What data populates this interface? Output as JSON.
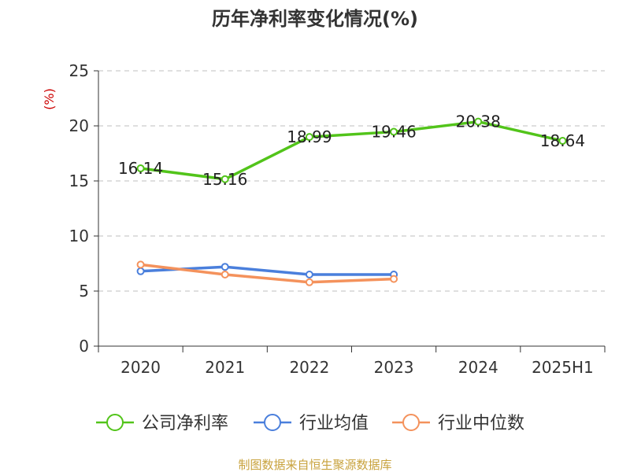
{
  "chart_data": {
    "type": "line",
    "title": "历年净利率变化情况(%)",
    "ylabel": "(%)",
    "categories": [
      "2020",
      "2021",
      "2022",
      "2023",
      "2024",
      "2025H1"
    ],
    "ylim": [
      0,
      25
    ],
    "yticks": [
      0,
      5,
      10,
      15,
      20,
      25
    ],
    "grid": true,
    "legend_position": "bottom",
    "series": [
      {
        "name": "公司净利率",
        "color": "#52c41a",
        "values": [
          16.14,
          15.16,
          18.99,
          19.46,
          20.38,
          18.64
        ],
        "labels": [
          "16.14",
          "15.16",
          "18.99",
          "19.46",
          "20.38",
          "18.64"
        ]
      },
      {
        "name": "行业均值",
        "color": "#4a7fdc",
        "values": [
          6.8,
          7.2,
          6.5,
          6.5,
          null,
          null
        ]
      },
      {
        "name": "行业中位数",
        "color": "#f4925c",
        "values": [
          7.4,
          6.5,
          5.8,
          6.1,
          null,
          null
        ]
      }
    ]
  },
  "source_text": "制图数据来自恒生聚源数据库",
  "colors": {
    "ylabel": "#cc0000",
    "source": "#c8a23c",
    "axis": "#333333",
    "grid": "#cccccc"
  }
}
